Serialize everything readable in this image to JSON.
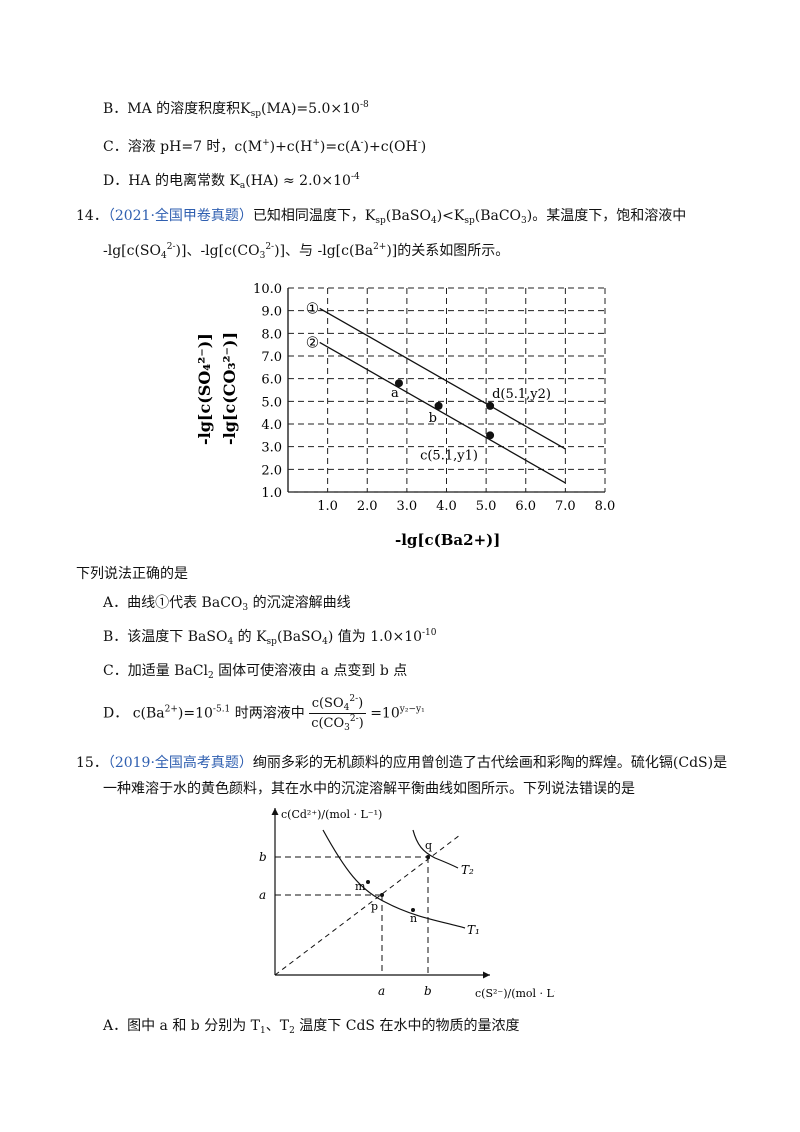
{
  "q13": {
    "optB": "B．MA 的溶度积度积K",
    "optB_sub": "sp",
    "optB_rest": "(MA)=5.0×10",
    "optB_exp": "-8",
    "optC": "C．溶液 pH=7 时，c(M",
    "optC_rest": ")+c(H",
    "optC_rest2": ")=c(A",
    "optC_rest3": ")+c(OH",
    "optC_end": ")",
    "optD": "D．HA 的电离常数 K",
    "optD_sub": "a",
    "optD_rest": "(HA) ≈ 2.0×10",
    "optD_exp": "-4"
  },
  "q14": {
    "num": "14．",
    "source": "（2021·全国甲卷真题）",
    "stem1": "已知相同温度下，K",
    "stem1_sub": "sp",
    "stem1_b": "(BaSO",
    "stem1_c": ")<K",
    "stem1_d": "(BaCO",
    "stem1_e": ")。某温度下，饱和溶液中",
    "stem2": "-lg[c(SO",
    "stem2_b": ")]、-lg[c(CO",
    "stem2_c": ")]、与 -lg[c(Ba",
    "stem2_d": ")]的关系如图所示。",
    "prompt": "下列说法正确的是",
    "optA": "A．曲线①代表 BaCO",
    "optA_end": " 的沉淀溶解曲线",
    "optB": "B．该温度下 BaSO",
    "optB_b": " 的 K",
    "optB_c": "(BaSO",
    "optB_d": ") 值为 1.0×10",
    "optB_exp": "-10",
    "optC": "C．加适量 BaCl",
    "optC_end": " 固体可使溶液由 a 点变到 b 点",
    "optD": "D．",
    "optD_b": "c(Ba",
    "optD_c": ")=10",
    "optD_exp": "-5.1",
    "optD_d": " 时两溶液中",
    "optD_num": "c(SO",
    "optD_den": "c(CO",
    "optD_e": "=10",
    "optD_exp2": "y₂−y₁"
  },
  "chart_data": {
    "type": "line",
    "xlabel": "-lg[c(Ba2+)]",
    "ylabel": "-lg[c(SO42-)]  -lg[c(CO32-)]",
    "xlim": [
      0.0,
      8.0
    ],
    "ylim": [
      1.0,
      10.0
    ],
    "xticks": [
      "1.0",
      "2.0",
      "3.0",
      "4.0",
      "5.0",
      "6.0",
      "7.0",
      "8.0"
    ],
    "yticks": [
      "10.0",
      "9.0",
      "8.0",
      "7.0",
      "6.0",
      "5.0",
      "4.0",
      "3.0",
      "2.0",
      "1.0"
    ],
    "grid": true,
    "series": [
      {
        "name": "①",
        "x": [
          0.8,
          7.0
        ],
        "y": [
          9.1,
          2.9
        ]
      },
      {
        "name": "②",
        "x": [
          0.8,
          7.0
        ],
        "y": [
          7.6,
          1.4
        ]
      }
    ],
    "points": [
      {
        "label": "a",
        "x": 2.8,
        "y": 5.8
      },
      {
        "label": "b",
        "x": 3.8,
        "y": 4.8
      },
      {
        "label": "d(5.1,y2)",
        "x": 5.1,
        "y": 4.8
      },
      {
        "label": "c(5.1,y1)",
        "x": 5.1,
        "y": 3.5
      }
    ]
  },
  "q15": {
    "num": "15．",
    "source": "（2019·全国高考真题）",
    "stem1": "绚丽多彩的无机颜料的应用曾创造了古代绘画和彩陶的辉煌。硫化镉(CdS)是",
    "stem2": "一种难溶于水的黄色颜料，其在水中的沉淀溶解平衡曲线如图所示。下列说法错误的是",
    "fig": {
      "ylabel": "c(Cd²⁺)/(mol · L⁻¹)",
      "xlabel": "c(S²⁻)/(mol · L⁻¹)",
      "a": "a",
      "b": "b",
      "m": "m",
      "n": "n",
      "p": "p",
      "q": "q",
      "T1": "T₁",
      "T2": "T₂"
    },
    "optA": "A．图中 a 和 b 分别为 T",
    "optA_b": "、T",
    "optA_c": " 温度下 CdS 在水中的物质的量浓度"
  }
}
